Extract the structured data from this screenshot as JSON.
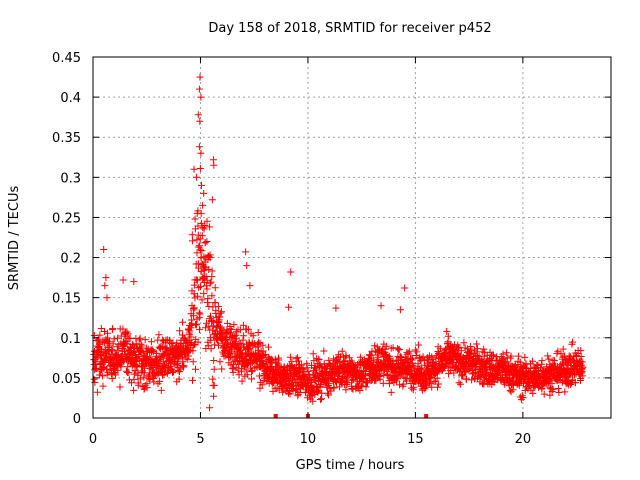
{
  "chart_data": {
    "type": "scatter",
    "title": "Day 158 of 2018, SRMTID for receiver p452",
    "xlabel": "GPS time / hours",
    "ylabel": "SRMTID / TECUs",
    "xlim": [
      0,
      24.1
    ],
    "ylim": [
      0,
      0.45
    ],
    "xticks": [
      0,
      5,
      10,
      15,
      20
    ],
    "xtick_labels": [
      "0",
      "5",
      "10",
      "15",
      "20"
    ],
    "yticks": [
      0,
      0.05,
      0.1,
      0.15,
      0.2,
      0.25,
      0.3,
      0.35,
      0.4,
      0.45
    ],
    "ytick_labels": [
      "0",
      "0.05",
      "0.1",
      "0.15",
      "0.2",
      "0.25",
      "0.3",
      "0.35",
      "0.4",
      "0.45"
    ],
    "grid": true,
    "marker": "plus",
    "color": "#ff0000",
    "trend": [
      [
        0.0,
        0.075
      ],
      [
        0.5,
        0.08
      ],
      [
        1.0,
        0.075
      ],
      [
        1.5,
        0.085
      ],
      [
        2.0,
        0.07
      ],
      [
        2.5,
        0.065
      ],
      [
        3.0,
        0.07
      ],
      [
        3.5,
        0.075
      ],
      [
        4.0,
        0.08
      ],
      [
        4.5,
        0.09
      ],
      [
        4.8,
        0.17
      ],
      [
        5.0,
        0.2
      ],
      [
        5.3,
        0.16
      ],
      [
        5.6,
        0.12
      ],
      [
        6.0,
        0.1
      ],
      [
        6.5,
        0.085
      ],
      [
        7.0,
        0.08
      ],
      [
        7.5,
        0.075
      ],
      [
        8.0,
        0.06
      ],
      [
        8.5,
        0.055
      ],
      [
        9.0,
        0.05
      ],
      [
        9.5,
        0.05
      ],
      [
        10.0,
        0.045
      ],
      [
        10.5,
        0.05
      ],
      [
        11.0,
        0.055
      ],
      [
        11.5,
        0.06
      ],
      [
        12.0,
        0.055
      ],
      [
        12.5,
        0.055
      ],
      [
        13.0,
        0.065
      ],
      [
        13.5,
        0.07
      ],
      [
        14.0,
        0.06
      ],
      [
        14.5,
        0.065
      ],
      [
        15.0,
        0.06
      ],
      [
        15.5,
        0.055
      ],
      [
        16.0,
        0.065
      ],
      [
        16.5,
        0.075
      ],
      [
        17.0,
        0.07
      ],
      [
        17.5,
        0.07
      ],
      [
        18.0,
        0.065
      ],
      [
        18.5,
        0.06
      ],
      [
        19.0,
        0.06
      ],
      [
        19.5,
        0.055
      ],
      [
        20.0,
        0.05
      ],
      [
        20.5,
        0.05
      ],
      [
        21.0,
        0.055
      ],
      [
        21.5,
        0.055
      ],
      [
        22.0,
        0.06
      ],
      [
        22.5,
        0.065
      ],
      [
        22.8,
        0.06
      ]
    ],
    "spread_by_hour": [
      {
        "from": 0.0,
        "to": 4.6,
        "spread": 0.028
      },
      {
        "from": 4.6,
        "to": 5.7,
        "spread": 0.09
      },
      {
        "from": 5.7,
        "to": 8.0,
        "spread": 0.03
      },
      {
        "from": 8.0,
        "to": 22.8,
        "spread": 0.022
      }
    ],
    "point_count": 2600,
    "notable_points": [
      {
        "x": 4.98,
        "y": 0.425
      },
      {
        "x": 4.95,
        "y": 0.41
      },
      {
        "x": 5.02,
        "y": 0.4
      },
      {
        "x": 4.9,
        "y": 0.378
      },
      {
        "x": 4.97,
        "y": 0.37
      },
      {
        "x": 4.95,
        "y": 0.338
      },
      {
        "x": 5.02,
        "y": 0.33
      },
      {
        "x": 5.6,
        "y": 0.322
      },
      {
        "x": 5.62,
        "y": 0.315
      },
      {
        "x": 4.7,
        "y": 0.31
      },
      {
        "x": 4.82,
        "y": 0.3
      },
      {
        "x": 5.05,
        "y": 0.29
      },
      {
        "x": 5.15,
        "y": 0.28
      },
      {
        "x": 5.55,
        "y": 0.272
      },
      {
        "x": 5.1,
        "y": 0.265
      },
      {
        "x": 4.85,
        "y": 0.255
      },
      {
        "x": 4.75,
        "y": 0.248
      },
      {
        "x": 5.2,
        "y": 0.24
      },
      {
        "x": 4.9,
        "y": 0.228
      },
      {
        "x": 5.3,
        "y": 0.22
      },
      {
        "x": 5.45,
        "y": 0.2
      },
      {
        "x": 7.1,
        "y": 0.207
      },
      {
        "x": 0.5,
        "y": 0.21
      },
      {
        "x": 0.6,
        "y": 0.175
      },
      {
        "x": 0.55,
        "y": 0.165
      },
      {
        "x": 0.65,
        "y": 0.15
      },
      {
        "x": 1.4,
        "y": 0.172
      },
      {
        "x": 1.9,
        "y": 0.17
      },
      {
        "x": 7.15,
        "y": 0.19
      },
      {
        "x": 7.3,
        "y": 0.165
      },
      {
        "x": 9.2,
        "y": 0.182
      },
      {
        "x": 14.5,
        "y": 0.162
      },
      {
        "x": 13.4,
        "y": 0.14
      },
      {
        "x": 14.3,
        "y": 0.135
      },
      {
        "x": 9.1,
        "y": 0.138
      },
      {
        "x": 11.3,
        "y": 0.137
      }
    ],
    "zero_markers": [
      8.5,
      10.0,
      15.5
    ]
  }
}
